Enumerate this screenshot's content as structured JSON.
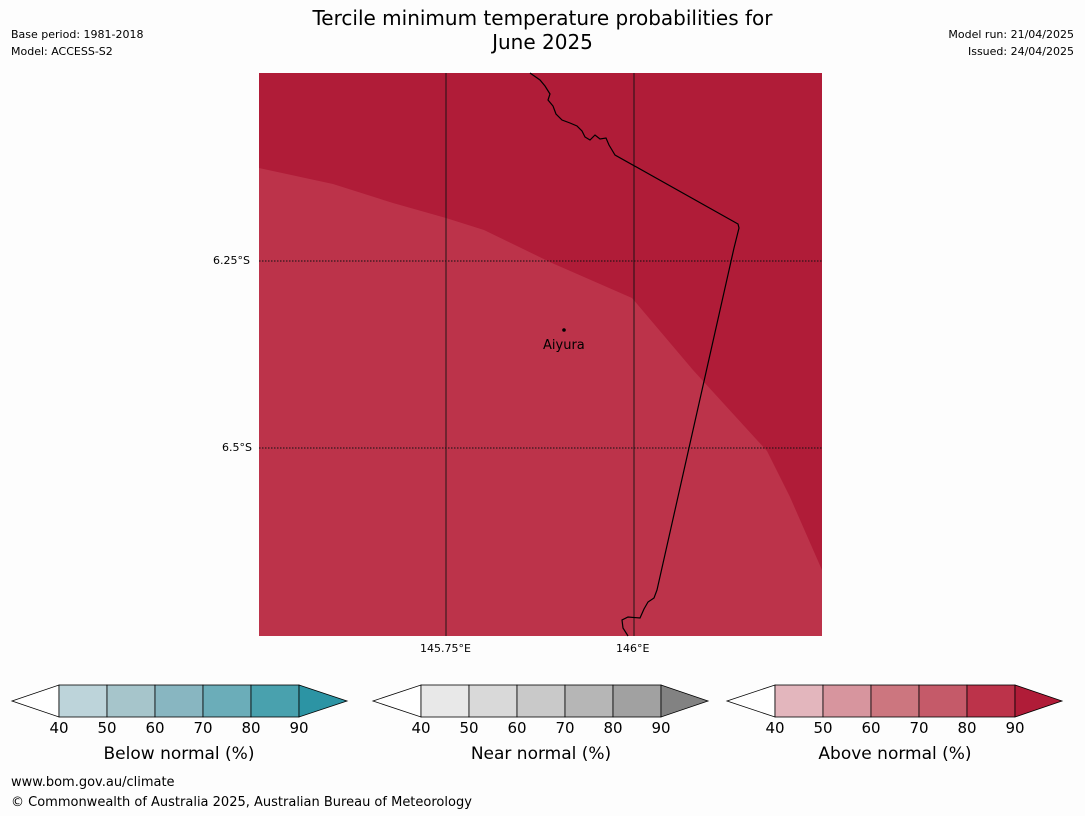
{
  "title_line1": "Tercile minimum temperature probabilities for",
  "title_line2": "June 2025",
  "meta_left": [
    "Base period: 1981-2018",
    "Model: ACCESS-S2"
  ],
  "meta_right": [
    "Model run: 21/04/2025",
    "Issued: 24/04/2025"
  ],
  "map": {
    "lat_labels": [
      "6.25°S",
      "6.5°S"
    ],
    "lon_labels": [
      "145.75°E",
      "146°E"
    ],
    "place_label": "Aiyura",
    "fill_colors": {
      "dark": "#b01c38",
      "light": "#bc334a"
    }
  },
  "colorbars": [
    {
      "label": "Below normal (%)",
      "ticks": [
        "40",
        "50",
        "60",
        "70",
        "80",
        "90"
      ],
      "colors": [
        "#ffffff",
        "#bdd4da",
        "#a6c5cb",
        "#88b6c1",
        "#6badb9",
        "#49a1ae",
        "#2c94a4"
      ]
    },
    {
      "label": "Near normal (%)",
      "ticks": [
        "40",
        "50",
        "60",
        "70",
        "80",
        "90"
      ],
      "colors": [
        "#ffffff",
        "#e8e8e8",
        "#d9d9d9",
        "#c9c9c9",
        "#b6b6b6",
        "#a1a1a1",
        "#828282"
      ]
    },
    {
      "label": "Above normal (%)",
      "ticks": [
        "40",
        "50",
        "60",
        "70",
        "80",
        "90"
      ],
      "colors": [
        "#ffffff",
        "#e3b6bd",
        "#d7959e",
        "#cc767f",
        "#c55a69",
        "#bc334a",
        "#b01c38"
      ]
    }
  ],
  "footer": [
    "www.bom.gov.au/climate",
    "© Commonwealth of Australia 2025, Australian Bureau of Meteorology"
  ]
}
